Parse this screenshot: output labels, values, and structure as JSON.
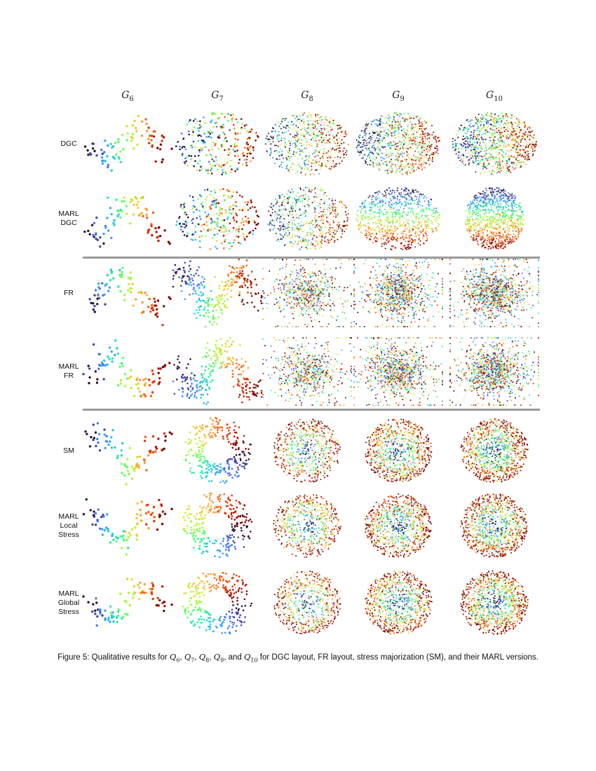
{
  "columns": [
    {
      "id": "g6",
      "base": "G",
      "sub": "6"
    },
    {
      "id": "g7",
      "base": "G",
      "sub": "7"
    },
    {
      "id": "g8",
      "base": "G",
      "sub": "8"
    },
    {
      "id": "g9",
      "base": "G",
      "sub": "9"
    },
    {
      "id": "g10",
      "base": "G",
      "sub": "10"
    }
  ],
  "rows": [
    {
      "id": "dgc",
      "label_lines": [
        "DGC"
      ]
    },
    {
      "id": "marl-dgc",
      "label_lines": [
        "MARL",
        "DGC"
      ]
    },
    {
      "id": "fr",
      "label_lines": [
        "FR"
      ]
    },
    {
      "id": "marl-fr",
      "label_lines": [
        "MARL",
        "FR"
      ]
    },
    {
      "id": "sm",
      "label_lines": [
        "SM"
      ]
    },
    {
      "id": "marl-local-stress",
      "label_lines": [
        "MARL",
        "Local",
        "Stress"
      ]
    },
    {
      "id": "marl-global-stress",
      "label_lines": [
        "MARL",
        "Global",
        "Stress"
      ]
    }
  ],
  "caption": {
    "prefix": "Figure 5: Qualitative results for ",
    "symbols": [
      {
        "base": "Q",
        "sub": "6",
        "after": ", "
      },
      {
        "base": "Q",
        "sub": "7",
        "after": ", "
      },
      {
        "base": "Q",
        "sub": "8",
        "after": ", "
      },
      {
        "base": "Q",
        "sub": "9",
        "after": ", and "
      },
      {
        "base": "Q",
        "sub": "10",
        "after": ""
      }
    ],
    "suffix": " for DGC layout, FR layout, stress majorization (SM), and their MARL versions."
  },
  "palette": [
    "#30123b",
    "#4145ab",
    "#4675ed",
    "#39a2fc",
    "#1bcfd4",
    "#24eca6",
    "#61fc6c",
    "#a4fc3b",
    "#d1e834",
    "#f3c63a",
    "#fe9b2d",
    "#f36315",
    "#d93806",
    "#b11901",
    "#7a0402"
  ]
}
